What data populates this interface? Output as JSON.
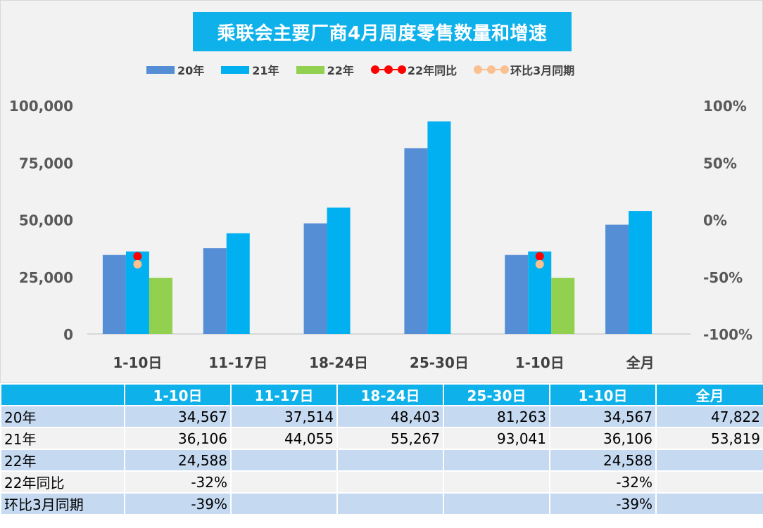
{
  "chart_data": {
    "type": "bar",
    "title": "乘联会主要厂商4月周度零售数量和增速",
    "categories": [
      "1-10日",
      "11-17日",
      "18-24日",
      "25-30日",
      "1-10日",
      "全月"
    ],
    "series": [
      {
        "name": "20年",
        "kind": "bar",
        "axis": "left",
        "color": "#558ed5",
        "values": [
          34567,
          37514,
          48403,
          81263,
          34567,
          47822
        ]
      },
      {
        "name": "21年",
        "kind": "bar",
        "axis": "left",
        "color": "#00b0f0",
        "values": [
          36106,
          44055,
          55267,
          93041,
          36106,
          53819
        ]
      },
      {
        "name": "22年",
        "kind": "bar",
        "axis": "left",
        "color": "#92d050",
        "values": [
          24588,
          null,
          null,
          null,
          24588,
          null
        ]
      },
      {
        "name": "22年同比",
        "kind": "line",
        "axis": "right",
        "color": "#ff0000",
        "values": [
          -0.32,
          null,
          null,
          null,
          -0.32,
          null
        ]
      },
      {
        "name": "环比3月同期",
        "kind": "line",
        "axis": "right",
        "color": "#fac090",
        "values": [
          -0.39,
          null,
          null,
          null,
          -0.39,
          null
        ]
      }
    ],
    "y_left": {
      "min": 0,
      "max": 100000,
      "ticks": [
        "0",
        "25,000",
        "50,000",
        "75,000",
        "100,000"
      ]
    },
    "y_right": {
      "min": -1,
      "max": 1,
      "ticks": [
        "-100%",
        "-50%",
        "0%",
        "50%",
        "100%"
      ]
    },
    "legend_position": "top",
    "grid": false
  },
  "table": {
    "header": [
      "",
      "1-10日",
      "11-17日",
      "18-24日",
      "25-30日",
      "1-10日",
      "全月"
    ],
    "rows": [
      {
        "label": "20年",
        "cells": [
          "34,567",
          "37,514",
          "48,403",
          "81,263",
          "34,567",
          "47,822"
        ]
      },
      {
        "label": "21年",
        "cells": [
          "36,106",
          "44,055",
          "55,267",
          "93,041",
          "36,106",
          "53,819"
        ]
      },
      {
        "label": "22年",
        "cells": [
          "24,588",
          "",
          "",
          "",
          "24,588",
          ""
        ]
      },
      {
        "label": "22年同比",
        "cells": [
          "-32%",
          "",
          "",
          "",
          "-32%",
          ""
        ]
      },
      {
        "label": "环比3月同期",
        "cells": [
          "-39%",
          "",
          "",
          "",
          "-39%",
          ""
        ]
      }
    ]
  }
}
